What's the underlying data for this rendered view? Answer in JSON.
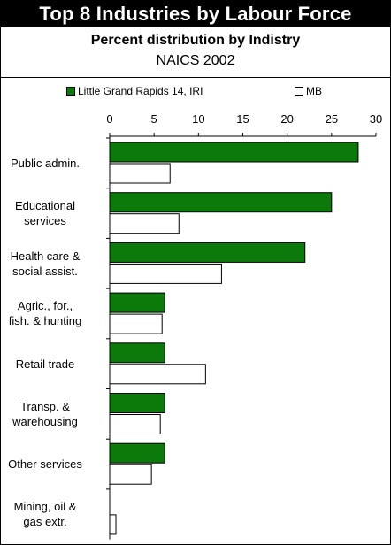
{
  "header": {
    "title": "Top 8 Industries by Labour Force",
    "subtitle": "Percent distribution by Indistry",
    "subtitle2": "NAICS 2002"
  },
  "colors": {
    "series1": "#0b7a0b",
    "series2": "#ffffff",
    "outline": "#000000"
  },
  "chart_data": {
    "type": "bar",
    "orientation": "horizontal",
    "categories": [
      "Public admin.",
      "Educational services",
      "Health care & social assist.",
      "Agric., for., fish. & hunting",
      "Retail trade",
      "Transp. & warehousing",
      "Other services",
      "Mining, oil & gas extr."
    ],
    "category_lines": [
      [
        "Public admin."
      ],
      [
        "Educational",
        "services"
      ],
      [
        "Health care &",
        "social assist."
      ],
      [
        "Agric., for.,",
        "fish. & hunting"
      ],
      [
        "Retail trade"
      ],
      [
        "Transp. &",
        "warehousing"
      ],
      [
        "Other services"
      ],
      [
        "Mining, oil &",
        "gas extr."
      ]
    ],
    "series": [
      {
        "name": "Little Grand Rapids 14, IRI",
        "values": [
          28.0,
          25.0,
          22.0,
          6.2,
          6.2,
          6.2,
          6.2,
          0.0
        ]
      },
      {
        "name": "MB",
        "values": [
          6.8,
          7.8,
          12.6,
          5.9,
          10.8,
          5.7,
          4.7,
          0.7
        ]
      }
    ],
    "xlim": [
      0,
      30
    ],
    "xticks": [
      "0",
      "5",
      "10",
      "15",
      "20",
      "25",
      "30"
    ],
    "legend_position": "top",
    "grid": false
  }
}
